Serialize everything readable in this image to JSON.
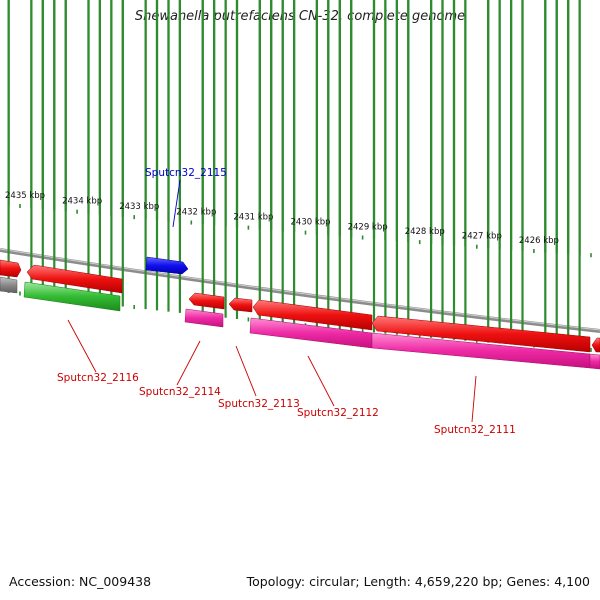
{
  "title": "Shewanella putrefaciens CN-32, complete genome",
  "footer": {
    "accession": "Accession: NC_009438",
    "summary": "Topology: circular; Length: 4,659,220 bp; Genes: 4,100"
  },
  "colors": {
    "backbone": "#8c8c8c",
    "tick": "#2e8b2e",
    "gene_red": "#ee1111",
    "gene_pink": "#ee2aa5",
    "gene_blue": "#1010ee",
    "gene_green": "#33bb33",
    "gene_gray": "#8a8a8a",
    "label_red": "#cc0000",
    "label_blue": "#0000cc"
  },
  "scale_labels": [
    "2435 kbp",
    "2434 kbp",
    "2433 kbp",
    "2432 kbp",
    "2431 kbp",
    "2430 kbp",
    "2429 kbp",
    "2428 kbp",
    "2427 kbp",
    "2426 kbp"
  ],
  "gene_labels": [
    {
      "id": "blue",
      "text": "Sputcn32_2115",
      "color": "blue"
    },
    {
      "id": "g2116",
      "text": "Sputcn32_2116",
      "color": "red"
    },
    {
      "id": "g2114",
      "text": "Sputcn32_2114",
      "color": "red"
    },
    {
      "id": "g2113",
      "text": "Sputcn32_2113",
      "color": "red"
    },
    {
      "id": "g2112",
      "text": "Sputcn32_2112",
      "color": "red"
    },
    {
      "id": "g2111",
      "text": "Sputcn32_2111",
      "color": "red"
    }
  ]
}
